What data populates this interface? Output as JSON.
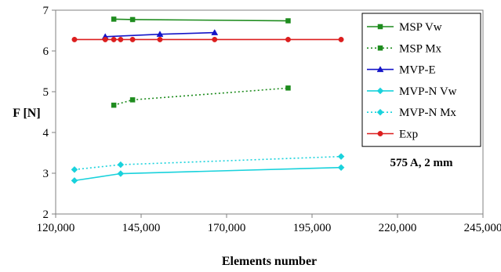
{
  "chart_data": {
    "type": "line",
    "title": "",
    "xlabel": "Elements number",
    "ylabel": "F [N]",
    "xlim": [
      120000,
      245000
    ],
    "ylim": [
      2,
      7
    ],
    "xticks": [
      120000,
      145000,
      170000,
      195000,
      220000,
      245000
    ],
    "xtick_labels": [
      "120,000",
      "145,000",
      "170,000",
      "195,000",
      "220,000",
      "245,000"
    ],
    "yticks": [
      2,
      3,
      4,
      5,
      6,
      7
    ],
    "ytick_labels": [
      "2",
      "3",
      "4",
      "5",
      "6",
      "7"
    ],
    "grid": false,
    "legend_position": "top-right",
    "annotation": "575 A, 2 mm",
    "series": [
      {
        "name": "MSP Vw",
        "color": "#1e8c1e",
        "line_style": "solid",
        "marker": "square",
        "x": [
          137000,
          142500,
          188000
        ],
        "y": [
          6.78,
          6.77,
          6.74
        ]
      },
      {
        "name": "MSP Mx",
        "color": "#1e8c1e",
        "line_style": "dotted",
        "marker": "square",
        "x": [
          137000,
          142500,
          188000
        ],
        "y": [
          4.67,
          4.8,
          5.09
        ]
      },
      {
        "name": "MVP-E",
        "color": "#1515c8",
        "line_style": "solid",
        "marker": "triangle",
        "x": [
          134500,
          150500,
          166500
        ],
        "y": [
          6.35,
          6.41,
          6.45
        ]
      },
      {
        "name": "MVP-N Vw",
        "color": "#19d2dc",
        "line_style": "solid",
        "marker": "diamond",
        "x": [
          125500,
          139000,
          203500
        ],
        "y": [
          2.82,
          2.99,
          3.14
        ]
      },
      {
        "name": "MVP-N Mx",
        "color": "#19d2dc",
        "line_style": "dotted",
        "marker": "diamond",
        "x": [
          125500,
          139000,
          203500
        ],
        "y": [
          3.09,
          3.21,
          3.41
        ]
      },
      {
        "name": "Exp",
        "color": "#dc1e1e",
        "line_style": "solid",
        "marker": "circle",
        "x": [
          125500,
          134500,
          137000,
          139000,
          142500,
          150500,
          166500,
          188000,
          203500
        ],
        "y": [
          6.28,
          6.28,
          6.28,
          6.28,
          6.28,
          6.28,
          6.28,
          6.28,
          6.28
        ]
      }
    ]
  }
}
